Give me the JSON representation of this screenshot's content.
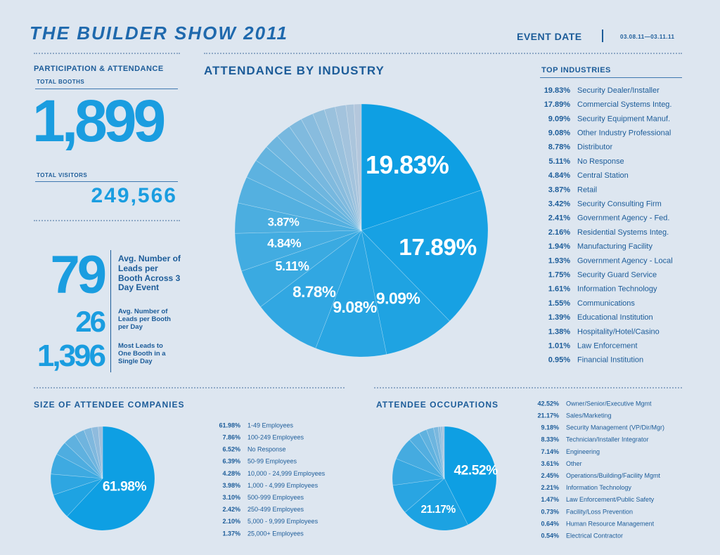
{
  "header": {
    "title": "THE BUILDER SHOW 2011",
    "event_date_label": "EVENT DATE",
    "event_date": "03.08.11—03.11.11"
  },
  "participation": {
    "title": "PARTICIPATION & ATTENDANCE",
    "booths_label": "TOTAL BOOTHS",
    "booths": "1,899",
    "visitors_label": "TOTAL VISITORS",
    "visitors": "249,566"
  },
  "leads": [
    {
      "value": "79",
      "label": "Avg. Number of Leads per Booth Across 3 Day Event"
    },
    {
      "value": "26",
      "label": "Avg. Number of Leads per Booth per Day"
    },
    {
      "value": "1,396",
      "label": "Most Leads to One Booth in a Single Day"
    }
  ],
  "chart_data": [
    {
      "type": "pie",
      "title": "ATTENDANCE BY INDUSTRY",
      "legend_title": "TOP INDUSTRIES",
      "categories": [
        "Security Dealer/Installer",
        "Commercial Systems Integ.",
        "Security Equipment Manuf.",
        "Other Industry Professional",
        "Distributor",
        "No Response",
        "Central Station",
        "Retail",
        "Security Consulting Firm",
        "Government Agency - Fed.",
        "Residential Systems Integ.",
        "Manufacturing Facility",
        "Government Agency - Local",
        "Security Guard Service",
        "Information Technology",
        "Communications",
        "Educational Institution",
        "Hospitality/Hotel/Casino",
        "Law Enforcement",
        "Financial Institution"
      ],
      "values": [
        19.83,
        17.89,
        9.09,
        9.08,
        8.78,
        5.11,
        4.84,
        3.87,
        3.42,
        2.41,
        2.16,
        1.94,
        1.93,
        1.75,
        1.61,
        1.55,
        1.39,
        1.38,
        1.01,
        0.95
      ],
      "value_labels": [
        "19.83%",
        "17.89%",
        "9.09%",
        "9.08%",
        "8.78%",
        "5.11%",
        "4.84%",
        "3.87%",
        "3.42%",
        "2.41%",
        "2.16%",
        "1.94%",
        "1.93%",
        "1.75%",
        "1.61%",
        "1.55%",
        "1.39%",
        "1.38%",
        "1.01%",
        "0.95%"
      ],
      "colors": [
        "#0e9fe3",
        "#b4c7dc"
      ]
    },
    {
      "type": "pie",
      "title": "SIZE OF ATTENDEE COMPANIES",
      "categories": [
        "1-49 Employees",
        "100-249 Employees",
        "No Response",
        "50-99 Employees",
        "10,000 - 24,999 Employees",
        "1,000 - 4,999 Employees",
        "500-999 Employees",
        "250-499 Employees",
        "5,000 - 9,999 Employees",
        "25,000+ Employees"
      ],
      "values": [
        61.98,
        7.86,
        6.52,
        6.39,
        4.28,
        3.98,
        3.1,
        2.42,
        2.1,
        1.37
      ],
      "value_labels": [
        "61.98%",
        "7.86%",
        "6.52%",
        "6.39%",
        "4.28%",
        "3.98%",
        "3.10%",
        "2.42%",
        "2.10%",
        "1.37%"
      ],
      "colors": [
        "#0e9fe3",
        "#9fbfdc"
      ]
    },
    {
      "type": "pie",
      "title": "ATTENDEE OCCUPATIONS",
      "categories": [
        "Owner/Senior/Executive Mgmt",
        "Sales/Marketing",
        "Security Management (VP/Dir/Mgr)",
        "Technician/Installer Integrator",
        "Engineering",
        "Other",
        "Operations/Building/Facility Mgmt",
        "Information Technology",
        "Law Enforcement/Public Safety",
        "Facility/Loss Prevention",
        "Human Resource Management",
        "Electrical Contractor"
      ],
      "values": [
        42.52,
        21.17,
        9.18,
        8.33,
        7.14,
        3.61,
        2.45,
        2.21,
        1.47,
        0.73,
        0.64,
        0.54
      ],
      "value_labels": [
        "42.52%",
        "21.17%",
        "9.18%",
        "8.33%",
        "7.14%",
        "3.61%",
        "2.45%",
        "2.21%",
        "1.47%",
        "0.73%",
        "0.64%",
        "0.54%"
      ],
      "colors": [
        "#0e9fe3",
        "#a4c1dc"
      ]
    }
  ]
}
